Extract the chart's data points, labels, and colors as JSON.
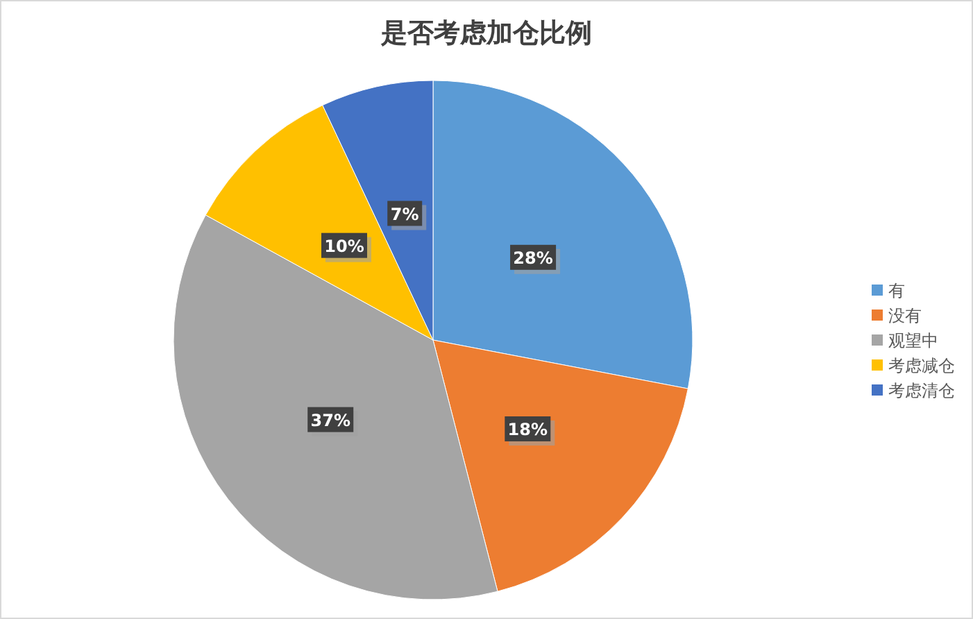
{
  "chart_data": {
    "type": "pie",
    "title": "是否考虑加仓比例",
    "categories": [
      "有",
      "没有",
      "观望中",
      "考虑减仓",
      "考虑清仓"
    ],
    "values": [
      28,
      18,
      37,
      10,
      7
    ],
    "colors": [
      "#5b9bd5",
      "#ed7d31",
      "#a5a5a5",
      "#ffc000",
      "#4472c4"
    ],
    "value_labels": [
      "28%",
      "18%",
      "37%",
      "10%",
      "7%"
    ],
    "legend": "right"
  }
}
